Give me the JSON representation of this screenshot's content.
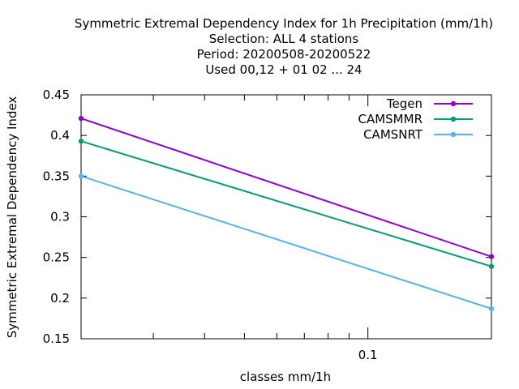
{
  "chart_data": {
    "type": "line",
    "title_lines": [
      "Symmetric Extremal Dependency Index  for 1h Precipitation (mm/1h)",
      "Selection: ALL      4 stations",
      "Period: 20200508-20200522",
      "Used  00,12  + 01 02 ... 24"
    ],
    "xlabel": "classes mm/1h",
    "ylabel": "Symmetric Extremal Dependency Index",
    "x_scale": "log",
    "xlim": [
      0.02,
      0.2
    ],
    "x_ticks": [
      {
        "value": 0.1,
        "label": "0.1"
      }
    ],
    "ylim": [
      0.15,
      0.45
    ],
    "y_ticks": [
      {
        "value": 0.15,
        "label": "0.15"
      },
      {
        "value": 0.2,
        "label": "0.2"
      },
      {
        "value": 0.25,
        "label": "0.25"
      },
      {
        "value": 0.3,
        "label": "0.3"
      },
      {
        "value": 0.35,
        "label": "0.35"
      },
      {
        "value": 0.4,
        "label": "0.4"
      },
      {
        "value": 0.45,
        "label": "0.45"
      }
    ],
    "grid": false,
    "legend_position": "top-right",
    "x": [
      0.02,
      0.2
    ],
    "series": [
      {
        "name": "Tegen",
        "color": "#9400d3",
        "values": [
          0.421,
          0.251
        ]
      },
      {
        "name": "CAMSMMR",
        "color": "#009e73",
        "values": [
          0.393,
          0.239
        ]
      },
      {
        "name": "CAMSNRT",
        "color": "#56b4e9",
        "values": [
          0.35,
          0.187
        ]
      }
    ]
  }
}
